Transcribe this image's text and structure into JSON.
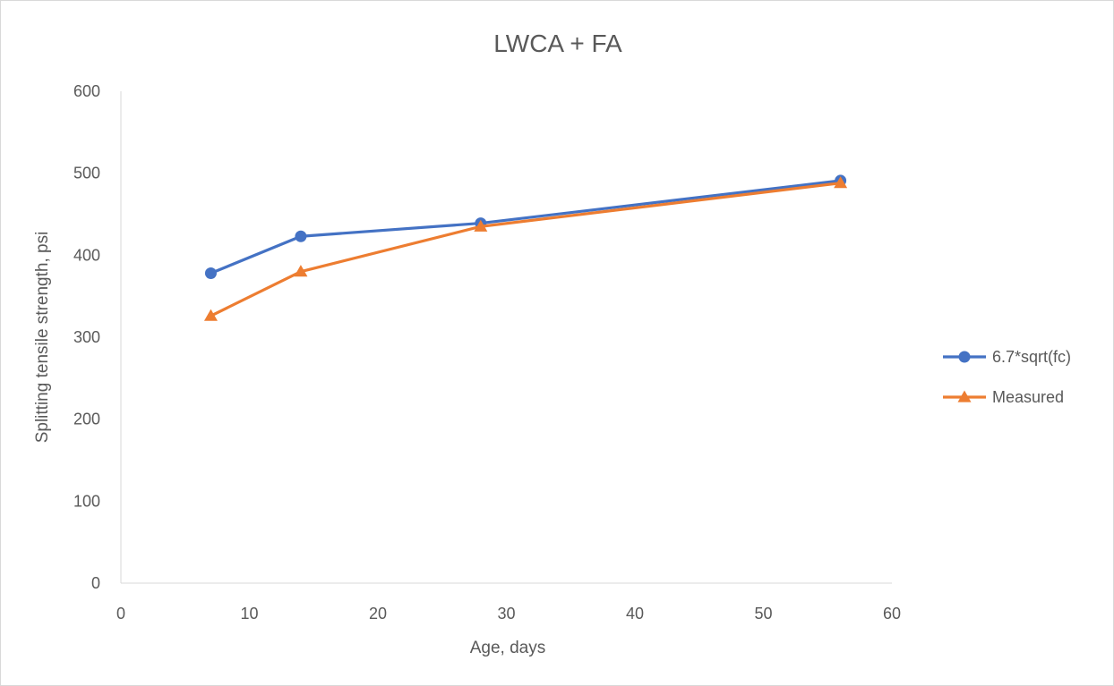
{
  "chart_data": {
    "type": "line",
    "title": "LWCA + FA",
    "xlabel": "Age, days",
    "ylabel": "Splitting tensile strength, psi",
    "xlim": [
      0,
      60
    ],
    "ylim": [
      0,
      600
    ],
    "xticks": [
      0,
      10,
      20,
      30,
      40,
      50,
      60
    ],
    "yticks": [
      0,
      100,
      200,
      300,
      400,
      500,
      600
    ],
    "grid": false,
    "legend_position": "right",
    "series": [
      {
        "name": "6.7*sqrt(fc)",
        "color": "#4472C4",
        "marker": "circle",
        "x": [
          7,
          14,
          28,
          56
        ],
        "y": [
          378,
          423,
          439,
          491
        ]
      },
      {
        "name": "Measured",
        "color": "#ED7D31",
        "marker": "triangle",
        "x": [
          7,
          14,
          28,
          56
        ],
        "y": [
          326,
          380,
          435,
          488
        ]
      }
    ]
  }
}
